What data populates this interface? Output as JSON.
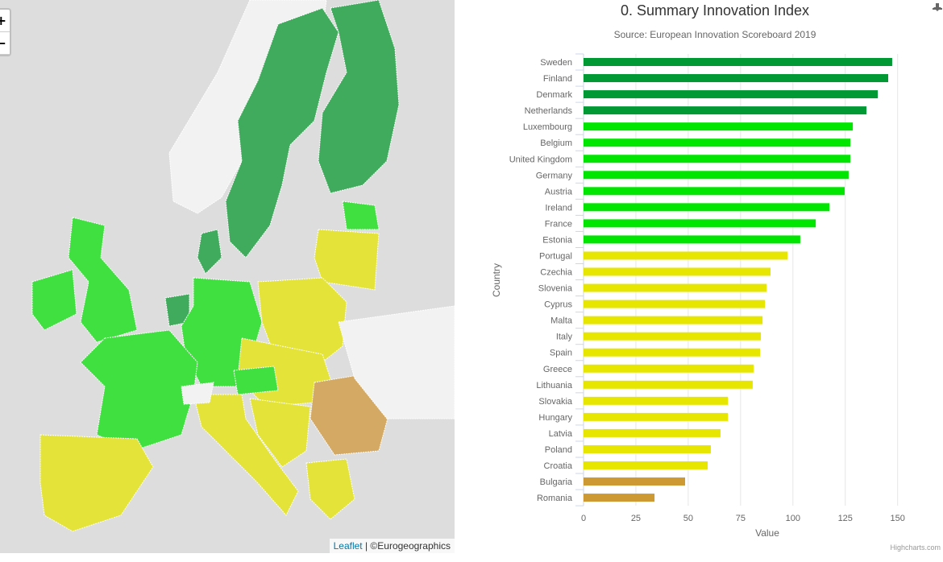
{
  "map": {
    "zoom_in": "+",
    "zoom_out": "−",
    "attribution_link": "Leaflet",
    "attribution_sep": " | ",
    "attribution_text": "©Eurogeographics"
  },
  "chart_data": {
    "type": "bar",
    "orientation": "horizontal",
    "title": "0. Summary Innovation Index",
    "subtitle": "Source: European Innovation Scoreboard 2019",
    "xlabel": "Country",
    "ylabel": "Value",
    "xlim": [
      0,
      175
    ],
    "ticks": [
      0,
      25,
      50,
      75,
      100,
      125,
      150,
      175
    ],
    "grid": true,
    "categories": [
      "Sweden",
      "Finland",
      "Denmark",
      "Netherlands",
      "Luxembourg",
      "Belgium",
      "United Kingdom",
      "Germany",
      "Austria",
      "Ireland",
      "France",
      "Estonia",
      "Portugal",
      "Czechia",
      "Slovenia",
      "Cyprus",
      "Malta",
      "Italy",
      "Spain",
      "Greece",
      "Lithuania",
      "Slovakia",
      "Hungary",
      "Latvia",
      "Poland",
      "Croatia",
      "Bulgaria",
      "Romania"
    ],
    "values": [
      147.4,
      145.5,
      140.5,
      135.1,
      128.6,
      127.4,
      127.4,
      126.6,
      124.7,
      117.4,
      110.9,
      103.5,
      97.4,
      89.3,
      87.4,
      86.6,
      85.5,
      84.7,
      84.3,
      81.2,
      80.8,
      68.9,
      68.9,
      65.4,
      60.8,
      59.3,
      48.5,
      33.9
    ],
    "groups": [
      "leader",
      "leader",
      "leader",
      "leader",
      "strong",
      "strong",
      "strong",
      "strong",
      "strong",
      "strong",
      "strong",
      "strong",
      "moderate",
      "moderate",
      "moderate",
      "moderate",
      "moderate",
      "moderate",
      "moderate",
      "moderate",
      "moderate",
      "moderate",
      "moderate",
      "moderate",
      "moderate",
      "moderate",
      "modest",
      "modest"
    ],
    "colors": {
      "leader": "#009933",
      "strong": "#00e600",
      "moderate": "#e6e600",
      "modest": "#cc9933"
    },
    "credits": "Highcharts.com"
  }
}
